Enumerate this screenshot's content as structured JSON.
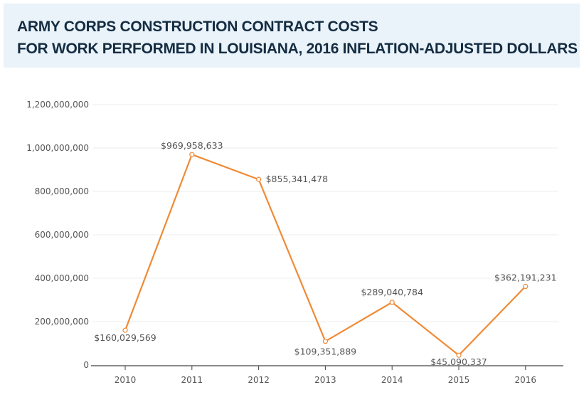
{
  "header": {
    "title_line1": "ARMY CORPS CONSTRUCTION CONTRACT COSTS",
    "title_line2": "FOR WORK PERFORMED IN LOUISIANA, 2016 INFLATION-ADJUSTED DOLLARS",
    "background": "#eaf3fa"
  },
  "chart_data": {
    "type": "line",
    "title": "ARMY CORPS CONSTRUCTION CONTRACT COSTS FOR WORK PERFORMED IN LOUISIANA, 2016 INFLATION-ADJUSTED DOLLARS",
    "categories": [
      "2010",
      "2011",
      "2012",
      "2013",
      "2014",
      "2015",
      "2016"
    ],
    "values": [
      160029569,
      969958633,
      855341478,
      109351889,
      289040784,
      45090337,
      362191231
    ],
    "data_labels": [
      "$160,029,569",
      "$969,958,633",
      "$855,341,478",
      "$109,351,889",
      "$289,040,784",
      "$45,090,337",
      "$362,191,231"
    ],
    "yticks": [
      "0",
      "200,000,000",
      "400,000,000",
      "600,000,000",
      "800,000,000",
      "1,000,000,000",
      "1,200,000,000"
    ],
    "ylim": [
      0,
      1200000000
    ],
    "grid": true,
    "color": "#f08a35",
    "xlabel": "",
    "ylabel": ""
  }
}
